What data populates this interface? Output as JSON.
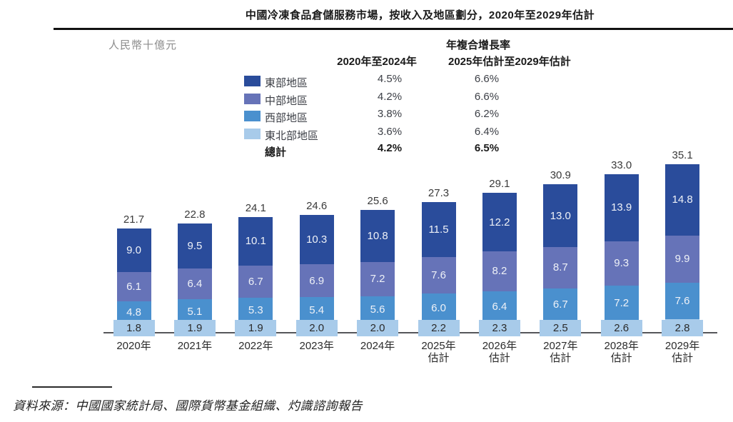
{
  "header": {
    "title": "中國冷凍食品倉儲服務市場，按收入及地區劃分，2020年至2029年估計"
  },
  "unit_label": "人民幣十億元",
  "cagr_table": {
    "title": "年複合增長率",
    "col1_header": "2020年至2024年",
    "col2_header": "2025年估計至2029年估計",
    "rows": [
      {
        "label": "東部地區",
        "color": "#2A4C9B",
        "col1": "4.5%",
        "col2": "6.6%"
      },
      {
        "label": "中部地區",
        "color": "#6673B8",
        "col1": "4.2%",
        "col2": "6.6%"
      },
      {
        "label": "西部地區",
        "color": "#4A90CE",
        "col1": "3.8%",
        "col2": "6.2%"
      },
      {
        "label": "東北部地區",
        "color": "#A8CBEA",
        "col1": "3.6%",
        "col2": "6.4%"
      }
    ],
    "total_row": {
      "label": "總計",
      "col1": "4.2%",
      "col2": "6.5%"
    }
  },
  "chart_data": {
    "type": "bar",
    "stacked": true,
    "title": "中國冷凍食品倉儲服務市場，按收入及地區劃分，2020年至2029年估計",
    "ylabel": "人民幣十億元",
    "xlabel": "",
    "grid": false,
    "legend_position": "top-left",
    "categories": [
      [
        "2020年"
      ],
      [
        "2021年"
      ],
      [
        "2022年"
      ],
      [
        "2023年"
      ],
      [
        "2024年"
      ],
      [
        "2025年",
        "估計"
      ],
      [
        "2026年",
        "估計"
      ],
      [
        "2027年",
        "估計"
      ],
      [
        "2028年",
        "估計"
      ],
      [
        "2029年",
        "估計"
      ]
    ],
    "series": [
      {
        "name": "東北部地區",
        "color": "#A8CBEA",
        "values": [
          1.8,
          1.9,
          1.9,
          2.0,
          2.0,
          2.2,
          2.3,
          2.5,
          2.6,
          2.8
        ]
      },
      {
        "name": "西部地區",
        "color": "#4A90CE",
        "values": [
          4.8,
          5.1,
          5.3,
          5.4,
          5.6,
          6.0,
          6.4,
          6.7,
          7.2,
          7.6
        ]
      },
      {
        "name": "中部地區",
        "color": "#6673B8",
        "values": [
          6.1,
          6.4,
          6.7,
          6.9,
          7.2,
          7.6,
          8.2,
          8.7,
          9.3,
          9.9
        ]
      },
      {
        "name": "東部地區",
        "color": "#2A4C9B",
        "values": [
          9.0,
          9.5,
          10.1,
          10.3,
          10.8,
          11.5,
          12.2,
          13.0,
          13.9,
          14.8
        ]
      }
    ],
    "totals": [
      21.7,
      22.8,
      24.1,
      24.6,
      25.6,
      27.3,
      29.1,
      30.9,
      33.0,
      35.1
    ]
  },
  "source": {
    "text": "資料來源：中國國家統計局、國際貨幣基金組織、灼識諮詢報告"
  }
}
